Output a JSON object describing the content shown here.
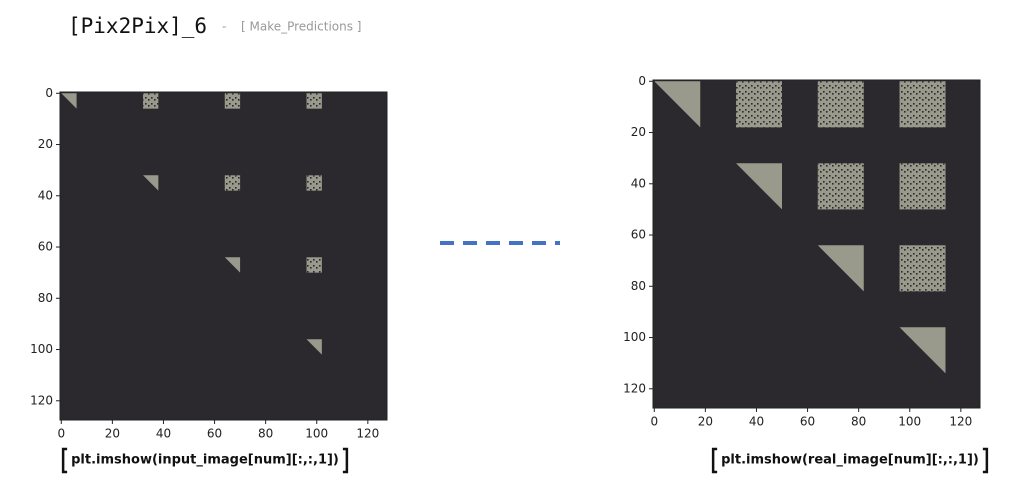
{
  "title": "[Pix2Pix]_6",
  "separator": "-",
  "subtitle": "[ Make_Predictions ]",
  "chart_data": [
    {
      "type": "image",
      "caption": "plt.imshow(input_image[num][:,:,1])",
      "xlim": [
        -0.5,
        127.5
      ],
      "ylim": [
        127.5,
        -0.5
      ],
      "xticks": [
        0,
        20,
        40,
        60,
        80,
        100,
        120
      ],
      "yticks": [
        0,
        20,
        40,
        60,
        80,
        100,
        120
      ],
      "background": "#2b292d",
      "color": "#9a9a8c",
      "blocks": [
        {
          "shape": "triangle",
          "x": [
            0,
            6
          ],
          "y": [
            0,
            6
          ]
        },
        {
          "shape": "square",
          "x": [
            32,
            38
          ],
          "y": [
            0,
            6
          ]
        },
        {
          "shape": "square",
          "x": [
            64,
            70
          ],
          "y": [
            0,
            6
          ]
        },
        {
          "shape": "square",
          "x": [
            96,
            102
          ],
          "y": [
            0,
            6
          ]
        },
        {
          "shape": "triangle",
          "x": [
            32,
            38
          ],
          "y": [
            32,
            38
          ]
        },
        {
          "shape": "square",
          "x": [
            64,
            70
          ],
          "y": [
            32,
            38
          ]
        },
        {
          "shape": "square",
          "x": [
            96,
            102
          ],
          "y": [
            32,
            38
          ]
        },
        {
          "shape": "triangle",
          "x": [
            64,
            70
          ],
          "y": [
            64,
            70
          ]
        },
        {
          "shape": "square",
          "x": [
            96,
            102
          ],
          "y": [
            64,
            70
          ]
        },
        {
          "shape": "triangle",
          "x": [
            96,
            102
          ],
          "y": [
            96,
            102
          ]
        }
      ]
    },
    {
      "type": "image",
      "caption": "plt.imshow(real_image[num][:,:,1])",
      "xlim": [
        -0.5,
        127.5
      ],
      "ylim": [
        127.5,
        -0.5
      ],
      "xticks": [
        0,
        20,
        40,
        60,
        80,
        100,
        120
      ],
      "yticks": [
        0,
        20,
        40,
        60,
        80,
        100,
        120
      ],
      "background": "#2b292d",
      "color": "#9a9a8c",
      "blocks": [
        {
          "shape": "triangle",
          "x": [
            0,
            18
          ],
          "y": [
            0,
            18
          ]
        },
        {
          "shape": "square",
          "x": [
            32,
            50
          ],
          "y": [
            0,
            18
          ]
        },
        {
          "shape": "square",
          "x": [
            64,
            82
          ],
          "y": [
            0,
            18
          ]
        },
        {
          "shape": "square",
          "x": [
            96,
            114
          ],
          "y": [
            0,
            18
          ]
        },
        {
          "shape": "triangle",
          "x": [
            32,
            50
          ],
          "y": [
            32,
            50
          ]
        },
        {
          "shape": "square",
          "x": [
            64,
            82
          ],
          "y": [
            32,
            50
          ]
        },
        {
          "shape": "square",
          "x": [
            96,
            114
          ],
          "y": [
            32,
            50
          ]
        },
        {
          "shape": "triangle",
          "x": [
            64,
            82
          ],
          "y": [
            64,
            82
          ]
        },
        {
          "shape": "square",
          "x": [
            96,
            114
          ],
          "y": [
            64,
            82
          ]
        },
        {
          "shape": "triangle",
          "x": [
            96,
            114
          ],
          "y": [
            96,
            114
          ]
        }
      ]
    }
  ]
}
